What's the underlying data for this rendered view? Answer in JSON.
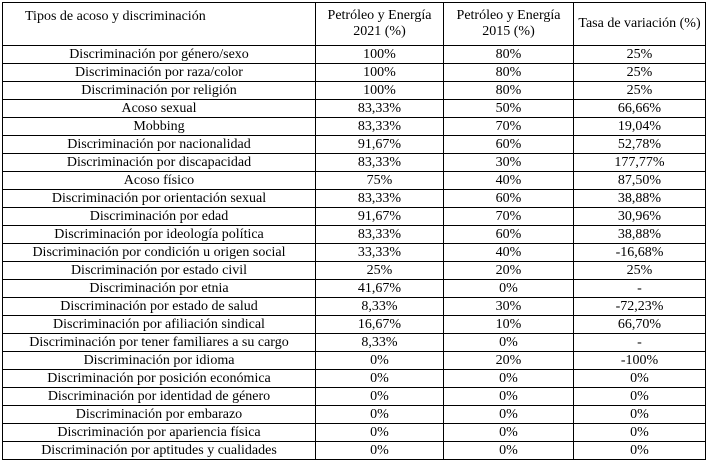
{
  "table": {
    "headers": [
      "Tipos de acoso y discriminación",
      "Petróleo y Energía 2021 (%)",
      "Petróleo y Energía 2015 (%)",
      "Tasa de variación (%)"
    ],
    "rows": [
      [
        "Discriminación por género/sexo",
        "100%",
        "80%",
        "25%"
      ],
      [
        "Discriminación por raza/color",
        "100%",
        "80%",
        "25%"
      ],
      [
        "Discriminación por religión",
        "100%",
        "80%",
        "25%"
      ],
      [
        "Acoso sexual",
        "83,33%",
        "50%",
        "66,66%"
      ],
      [
        "Mobbing",
        "83,33%",
        "70%",
        "19,04%"
      ],
      [
        "Discriminación por nacionalidad",
        "91,67%",
        "60%",
        "52,78%"
      ],
      [
        "Discriminación por discapacidad",
        "83,33%",
        "30%",
        "177,77%"
      ],
      [
        "Acoso físico",
        "75%",
        "40%",
        "87,50%"
      ],
      [
        "Discriminación por orientación sexual",
        "83,33%",
        "60%",
        "38,88%"
      ],
      [
        "Discriminación por edad",
        "91,67%",
        "70%",
        "30,96%"
      ],
      [
        "Discriminación por ideología política",
        "83,33%",
        "60%",
        "38,88%"
      ],
      [
        "Discriminación por condición u origen social",
        "33,33%",
        "40%",
        "-16,68%"
      ],
      [
        "Discriminación por estado civil",
        "25%",
        "20%",
        "25%"
      ],
      [
        "Discriminación por etnia",
        "41,67%",
        "0%",
        "-"
      ],
      [
        "Discriminación por estado de salud",
        "8,33%",
        "30%",
        "-72,23%"
      ],
      [
        "Discriminación por afiliación sindical",
        "16,67%",
        "10%",
        "66,70%"
      ],
      [
        "Discriminación por tener familiares a su cargo",
        "8,33%",
        "0%",
        "-"
      ],
      [
        "Discriminación por idioma",
        "0%",
        "20%",
        "-100%"
      ],
      [
        "Discriminación por posición económica",
        "0%",
        "0%",
        "0%"
      ],
      [
        "Discriminación por identidad de género",
        "0%",
        "0%",
        "0%"
      ],
      [
        "Discriminación por embarazo",
        "0%",
        "0%",
        "0%"
      ],
      [
        "Discriminación por apariencia física",
        "0%",
        "0%",
        "0%"
      ],
      [
        "Discriminación por aptitudes y cualidades",
        "0%",
        "0%",
        "0%"
      ]
    ]
  }
}
